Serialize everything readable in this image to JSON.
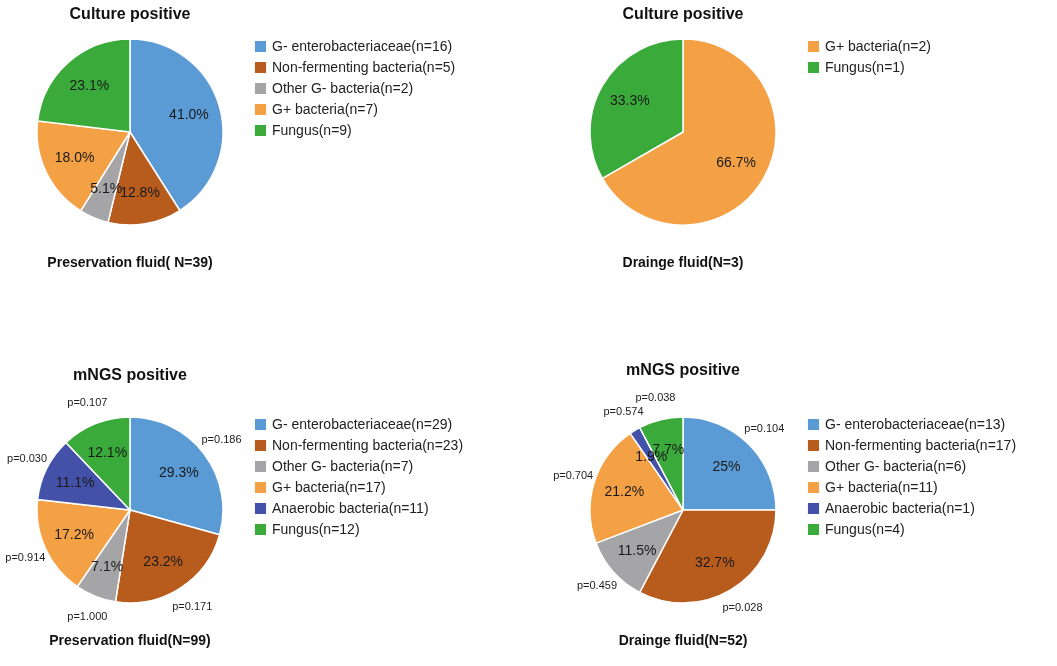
{
  "chart_data": [
    {
      "type": "pie",
      "title": "Culture positive",
      "subtitle": "Preservation fluid( N=39)",
      "legend": "right",
      "categories": [
        "G- enterobacteriaceae(n=16)",
        "Non-fermenting bacteria(n=5)",
        "Other G- bacteria(n=2)",
        "G+ bacteria(n=7)",
        "Fungus(n=9)"
      ],
      "values": [
        41.0,
        12.8,
        5.1,
        18.0,
        23.1
      ],
      "value_labels": [
        "41.0%",
        "12.8%",
        "5.1%",
        "18.0%",
        "23.1%"
      ],
      "colors": [
        "#5b9bd5",
        "#b85c1e",
        "#a5a5a8",
        "#f4a044",
        "#3aaa3a"
      ]
    },
    {
      "type": "pie",
      "title": "Culture positive",
      "subtitle": "Drainge fluid(N=3)",
      "legend": "right",
      "categories": [
        "G+ bacteria(n=2)",
        "Fungus(n=1)"
      ],
      "values": [
        66.7,
        33.3
      ],
      "value_labels": [
        "66.7%",
        "33.3%"
      ],
      "colors": [
        "#f4a044",
        "#3aaa3a"
      ]
    },
    {
      "type": "pie",
      "title": "mNGS positive",
      "subtitle": "Preservation fluid(N=99)",
      "legend": "right",
      "categories": [
        "G- enterobacteriaceae(n=29)",
        "Non-fermenting bacteria(n=23)",
        "Other G- bacteria(n=7)",
        "G+ bacteria(n=17)",
        "Anaerobic bacteria(n=11)",
        "Fungus(n=12)"
      ],
      "values": [
        29.3,
        23.2,
        7.1,
        17.2,
        11.1,
        12.1
      ],
      "value_labels": [
        "29.3%",
        "23.2%",
        "7.1%",
        "17.2%",
        "11.1%",
        "12.1%"
      ],
      "colors": [
        "#5b9bd5",
        "#b85c1e",
        "#a5a5a8",
        "#f4a044",
        "#4352a8",
        "#3aaa3a"
      ],
      "annotations": [
        {
          "text": "p=0.186",
          "x": "G- enterobacteriaceae(n=29)"
        },
        {
          "text": "p=0.171",
          "x": "Non-fermenting bacteria(n=23)"
        },
        {
          "text": "p=1.000",
          "x": "Other G- bacteria(n=7)"
        },
        {
          "text": "p=0.914",
          "x": "G+ bacteria(n=17)"
        },
        {
          "text": "p=0.030",
          "x": "Anaerobic bacteria(n=11)"
        },
        {
          "text": "p=0.107",
          "x": "Fungus(n=12)"
        }
      ]
    },
    {
      "type": "pie",
      "title": "mNGS positive",
      "subtitle": "Drainge fluid(N=52)",
      "legend": "right",
      "categories": [
        "G- enterobacteriaceae(n=13)",
        "Non-fermenting bacteria(n=17)",
        "Other G- bacteria(n=6)",
        "G+ bacteria(n=11)",
        "Anaerobic bacteria(n=1)",
        "Fungus(n=4)"
      ],
      "values": [
        25,
        32.7,
        11.5,
        21.2,
        1.9,
        7.7
      ],
      "value_labels": [
        "25%",
        "32.7%",
        "11.5%",
        "21.2%",
        "1.9%",
        "7.7%"
      ],
      "colors": [
        "#5b9bd5",
        "#b85c1e",
        "#a5a5a8",
        "#f4a044",
        "#4352a8",
        "#3aaa3a"
      ],
      "annotations": [
        {
          "text": "p=0.104",
          "x": "G- enterobacteriaceae(n=13)"
        },
        {
          "text": "p=0.028",
          "x": "Non-fermenting bacteria(n=17)"
        },
        {
          "text": "p=0.459",
          "x": "Other G- bacteria(n=6)"
        },
        {
          "text": "p=0.704",
          "x": "G+ bacteria(n=11)"
        },
        {
          "text": "p=0.574",
          "x": "Anaerobic bacteria(n=1)"
        },
        {
          "text": "p=0.038",
          "x": "Fungus(n=4)"
        }
      ]
    }
  ]
}
